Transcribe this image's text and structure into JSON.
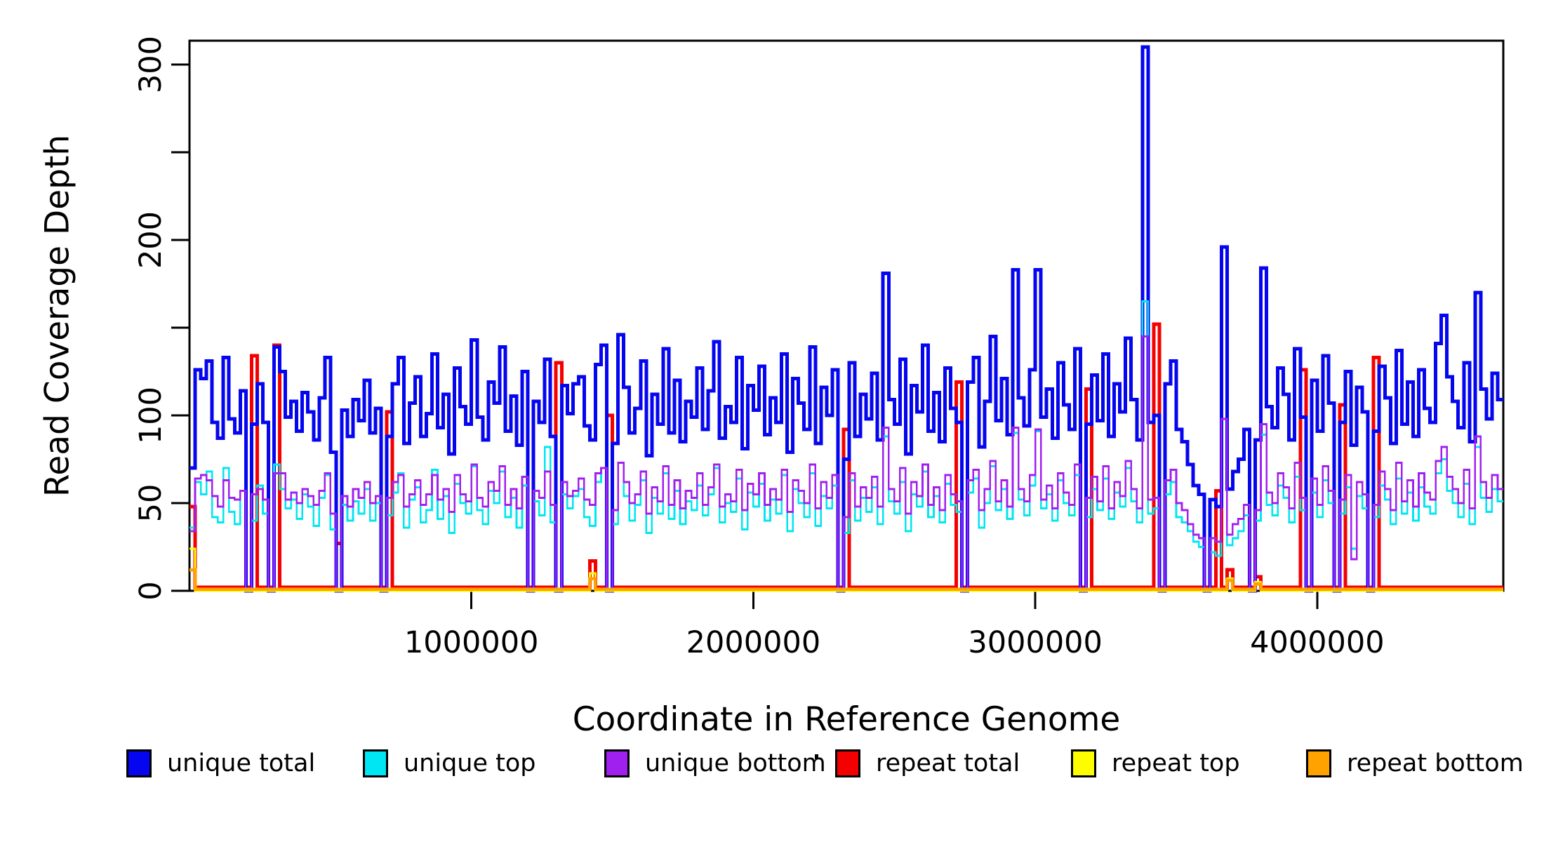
{
  "figure": {
    "x_axis": {
      "title": "Coordinate in Reference Genome",
      "tick_values": [
        1000000,
        2000000,
        3000000,
        4000000
      ],
      "tick_labels": [
        "1000000",
        "2000000",
        "3000000",
        "4000000"
      ],
      "range_bp": [
        0,
        4660000
      ]
    },
    "y_axis": {
      "title": "Read Coverage Depth",
      "ticks": [
        {
          "v": 0,
          "label": "0"
        },
        {
          "v": 50,
          "label": "50"
        },
        {
          "v": 100,
          "label": "100"
        },
        {
          "v": 150,
          "label": ""
        },
        {
          "v": 200,
          "label": "200"
        },
        {
          "v": 250,
          "label": ""
        },
        {
          "v": 300,
          "label": "300"
        }
      ],
      "range": [
        0,
        312
      ]
    },
    "legend": {
      "items": [
        {
          "label": "unique total",
          "color": "#0505f0"
        },
        {
          "label": "unique top",
          "color": "#00e6f2"
        },
        {
          "label": "unique bottom",
          "color": "#a020f0"
        },
        {
          "label": "repeat total",
          "color": "#f50000"
        },
        {
          "label": "repeat top",
          "color": "#fdfd00"
        },
        {
          "label": "repeat bottom",
          "color": "#ffa200"
        }
      ]
    }
  },
  "chart_data": {
    "type": "line",
    "subtype": "step",
    "title": "",
    "xlabel": "Coordinate in Reference Genome",
    "ylabel": "Read Coverage Depth",
    "x_start": 0,
    "bin_size_bp": 20000,
    "n_bins": 233,
    "grid": false,
    "legend_position": "bottom",
    "draw_order": [
      "repeat total",
      "unique total",
      "unique top",
      "unique bottom",
      "repeat top",
      "repeat bottom"
    ],
    "series": [
      {
        "name": "unique total",
        "color": "#0505f0",
        "line_width": 5,
        "values": [
          70,
          126,
          121,
          131,
          96,
          87,
          133,
          98,
          90,
          114,
          0,
          95,
          118,
          96,
          0,
          139,
          125,
          99,
          108,
          91,
          113,
          102,
          86,
          110,
          133,
          79,
          0,
          103,
          88,
          109,
          97,
          120,
          90,
          104,
          0,
          88,
          118,
          133,
          84,
          107,
          122,
          88,
          101,
          135,
          93,
          112,
          78,
          127,
          105,
          95,
          143,
          99,
          86,
          119,
          107,
          139,
          91,
          111,
          83,
          125,
          0,
          108,
          96,
          132,
          88,
          0,
          117,
          101,
          118,
          122,
          94,
          86,
          129,
          140,
          0,
          84,
          146,
          116,
          90,
          104,
          131,
          77,
          112,
          95,
          138,
          90,
          120,
          85,
          108,
          99,
          127,
          92,
          114,
          142,
          87,
          105,
          96,
          133,
          81,
          117,
          103,
          128,
          89,
          110,
          96,
          135,
          79,
          121,
          107,
          92,
          139,
          84,
          116,
          100,
          126,
          0,
          75,
          130,
          88,
          112,
          98,
          124,
          86,
          181,
          109,
          95,
          132,
          78,
          117,
          102,
          140,
          91,
          113,
          85,
          127,
          104,
          96,
          0,
          119,
          133,
          82,
          108,
          145,
          97,
          121,
          89,
          183,
          110,
          94,
          126,
          183,
          99,
          115,
          87,
          130,
          106,
          92,
          138,
          0,
          95,
          123,
          97,
          135,
          88,
          118,
          102,
          144,
          109,
          86,
          310,
          96,
          100,
          0,
          118,
          131,
          92,
          85,
          72,
          60,
          55,
          0,
          52,
          48,
          196,
          58,
          68,
          75,
          92,
          0,
          86,
          184,
          105,
          93,
          127,
          112,
          86,
          138,
          99,
          0,
          120,
          91,
          134,
          107,
          0,
          96,
          125,
          83,
          116,
          102,
          0,
          91,
          128,
          110,
          84,
          137,
          95,
          119,
          88,
          126,
          104,
          96,
          141,
          157,
          122,
          108,
          93,
          130,
          85,
          170,
          115,
          98,
          124,
          109
        ]
      },
      {
        "name": "unique top",
        "color": "#00e6f2",
        "line_width": 2.6,
        "values": [
          36,
          62,
          55,
          68,
          42,
          39,
          70,
          45,
          38,
          57,
          0,
          40,
          60,
          44,
          0,
          72,
          58,
          47,
          52,
          41,
          55,
          48,
          37,
          53,
          66,
          35,
          0,
          49,
          40,
          51,
          44,
          58,
          40,
          50,
          0,
          43,
          56,
          67,
          36,
          52,
          59,
          39,
          46,
          69,
          41,
          54,
          33,
          61,
          50,
          44,
          71,
          46,
          38,
          57,
          50,
          68,
          42,
          53,
          36,
          60,
          0,
          51,
          43,
          82,
          39,
          0,
          55,
          47,
          54,
          58,
          42,
          37,
          62,
          70,
          0,
          38,
          73,
          54,
          40,
          49,
          63,
          33,
          53,
          44,
          67,
          41,
          57,
          38,
          51,
          46,
          60,
          43,
          55,
          70,
          39,
          50,
          45,
          64,
          35,
          56,
          48,
          61,
          40,
          52,
          44,
          66,
          34,
          58,
          50,
          42,
          67,
          37,
          54,
          47,
          60,
          0,
          33,
          63,
          40,
          53,
          45,
          59,
          38,
          88,
          51,
          44,
          62,
          34,
          55,
          48,
          68,
          42,
          54,
          39,
          61,
          49,
          45,
          0,
          56,
          64,
          36,
          50,
          71,
          46,
          58,
          41,
          90,
          52,
          43,
          60,
          91,
          47,
          55,
          40,
          63,
          50,
          43,
          66,
          0,
          42,
          58,
          46,
          64,
          41,
          56,
          48,
          70,
          51,
          39,
          165,
          44,
          47,
          0,
          55,
          62,
          42,
          39,
          34,
          28,
          25,
          0,
          22,
          20,
          98,
          26,
          30,
          34,
          43,
          0,
          40,
          89,
          49,
          43,
          60,
          53,
          39,
          65,
          46,
          0,
          56,
          42,
          63,
          50,
          0,
          44,
          59,
          24,
          54,
          47,
          0,
          42,
          60,
          52,
          38,
          64,
          44,
          56,
          40,
          59,
          48,
          44,
          67,
          75,
          57,
          50,
          42,
          61,
          38,
          82,
          53,
          45,
          58,
          51
        ]
      },
      {
        "name": "unique bottom",
        "color": "#a020f0",
        "line_width": 2.6,
        "values": [
          34,
          64,
          66,
          63,
          54,
          48,
          63,
          53,
          52,
          57,
          0,
          55,
          58,
          52,
          0,
          67,
          67,
          52,
          56,
          50,
          58,
          54,
          49,
          57,
          67,
          44,
          0,
          54,
          48,
          58,
          53,
          62,
          50,
          54,
          0,
          53,
          62,
          66,
          48,
          55,
          63,
          49,
          55,
          66,
          52,
          58,
          45,
          66,
          55,
          51,
          72,
          53,
          48,
          62,
          57,
          71,
          49,
          58,
          47,
          65,
          0,
          57,
          53,
          68,
          49,
          0,
          62,
          54,
          57,
          64,
          52,
          49,
          67,
          70,
          0,
          46,
          73,
          62,
          50,
          55,
          68,
          44,
          59,
          51,
          71,
          49,
          63,
          47,
          57,
          53,
          67,
          49,
          59,
          72,
          48,
          55,
          51,
          69,
          46,
          61,
          55,
          67,
          49,
          58,
          52,
          69,
          45,
          63,
          57,
          50,
          72,
          47,
          62,
          53,
          66,
          0,
          42,
          67,
          48,
          59,
          53,
          65,
          48,
          93,
          58,
          51,
          70,
          44,
          62,
          54,
          72,
          49,
          59,
          46,
          66,
          55,
          51,
          0,
          63,
          69,
          46,
          58,
          74,
          51,
          63,
          48,
          93,
          58,
          51,
          66,
          92,
          52,
          60,
          47,
          67,
          56,
          49,
          72,
          0,
          53,
          65,
          51,
          71,
          47,
          62,
          54,
          74,
          58,
          47,
          145,
          52,
          53,
          0,
          63,
          69,
          50,
          46,
          38,
          32,
          30,
          0,
          30,
          28,
          98,
          32,
          38,
          41,
          49,
          0,
          46,
          95,
          56,
          50,
          67,
          59,
          47,
          73,
          53,
          0,
          64,
          49,
          71,
          57,
          0,
          52,
          66,
          18,
          62,
          55,
          0,
          49,
          68,
          58,
          46,
          73,
          51,
          63,
          48,
          67,
          56,
          52,
          74,
          82,
          65,
          58,
          50,
          69,
          47,
          88,
          62,
          53,
          66,
          58
        ]
      },
      {
        "name": "repeat total",
        "color": "#f50000",
        "line_width": 5,
        "baseline": 2,
        "spikes": {
          "0": 48,
          "11": 134,
          "15": 140,
          "26": 27,
          "35": 102,
          "65": 130,
          "71": 17,
          "74": 100,
          "116": 92,
          "136": 119,
          "159": 115,
          "171": 152,
          "182": 57,
          "184": 12,
          "189": 8,
          "197": 126,
          "204": 106,
          "210": 133
        }
      },
      {
        "name": "repeat top",
        "color": "#fdfd00",
        "line_width": 3,
        "baseline": 0,
        "spikes": {
          "0": 24,
          "71": 10,
          "184": 7,
          "189": 5
        }
      },
      {
        "name": "repeat bottom",
        "color": "#ffa200",
        "line_width": 4.5,
        "baseline": 1,
        "spikes": {
          "0": 12,
          "71": 7,
          "184": 6,
          "189": 4
        }
      }
    ]
  }
}
